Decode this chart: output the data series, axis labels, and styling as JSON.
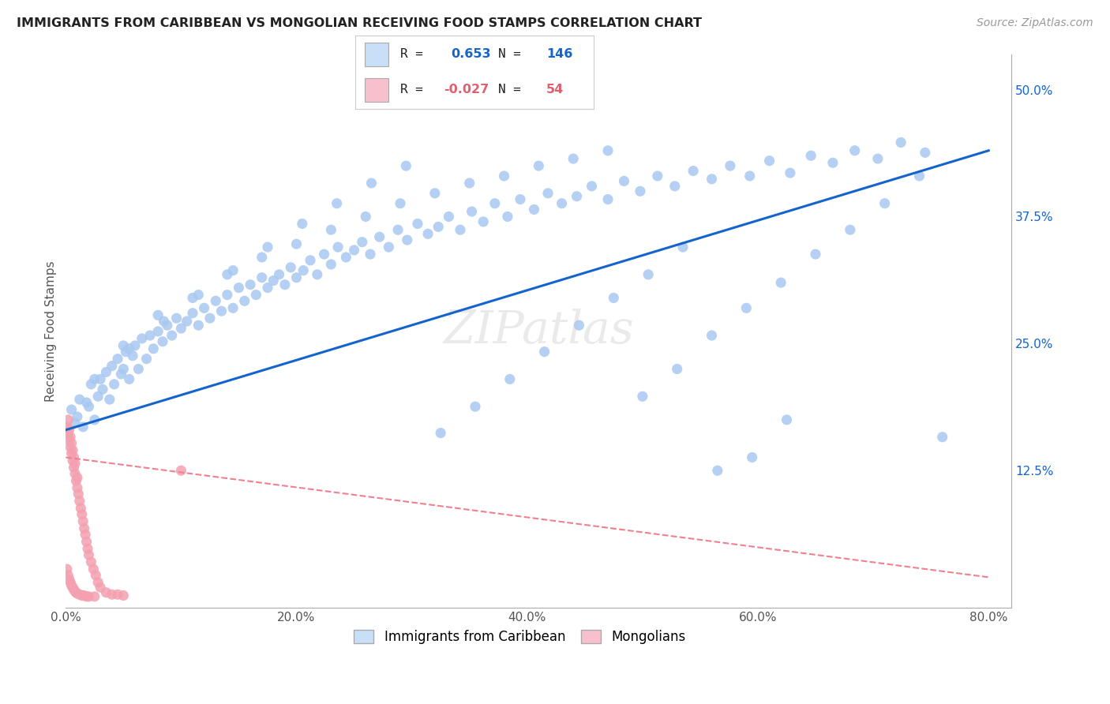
{
  "title": "IMMIGRANTS FROM CARIBBEAN VS MONGOLIAN RECEIVING FOOD STAMPS CORRELATION CHART",
  "source": "Source: ZipAtlas.com",
  "ylabel": "Receiving Food Stamps",
  "xlim": [
    0.0,
    0.82
  ],
  "ylim": [
    -0.01,
    0.535
  ],
  "xticks": [
    0.0,
    0.1,
    0.2,
    0.3,
    0.4,
    0.5,
    0.6,
    0.7,
    0.8
  ],
  "xticklabels": [
    "0.0%",
    "",
    "20.0%",
    "",
    "40.0%",
    "",
    "60.0%",
    "",
    "80.0%"
  ],
  "yticks_right": [
    0.125,
    0.25,
    0.375,
    0.5
  ],
  "ytick_right_labels": [
    "12.5%",
    "25.0%",
    "37.5%",
    "50.0%"
  ],
  "scatter_blue_color": "#a8c8f0",
  "scatter_pink_color": "#f4a0b0",
  "line_blue_color": "#1464cc",
  "line_pink_color": "#f08090",
  "legend_blue_face": "#c8dff8",
  "legend_pink_face": "#f8c0cc",
  "background_color": "#ffffff",
  "grid_color": "#dddddd",
  "watermark_text": "ZIPatlas",
  "blue_line_x0": 0.0,
  "blue_line_y0": 0.165,
  "blue_line_x1": 0.8,
  "blue_line_y1": 0.44,
  "pink_line_x0": 0.0,
  "pink_line_y0": 0.138,
  "pink_line_x1": 0.8,
  "pink_line_y1": 0.02,
  "blue_x": [
    0.005,
    0.008,
    0.01,
    0.012,
    0.015,
    0.018,
    0.02,
    0.022,
    0.025,
    0.028,
    0.03,
    0.032,
    0.035,
    0.038,
    0.04,
    0.042,
    0.045,
    0.048,
    0.05,
    0.052,
    0.055,
    0.058,
    0.06,
    0.063,
    0.066,
    0.07,
    0.073,
    0.076,
    0.08,
    0.084,
    0.088,
    0.092,
    0.096,
    0.1,
    0.105,
    0.11,
    0.115,
    0.12,
    0.125,
    0.13,
    0.135,
    0.14,
    0.145,
    0.15,
    0.155,
    0.16,
    0.165,
    0.17,
    0.175,
    0.18,
    0.185,
    0.19,
    0.195,
    0.2,
    0.206,
    0.212,
    0.218,
    0.224,
    0.23,
    0.236,
    0.243,
    0.25,
    0.257,
    0.264,
    0.272,
    0.28,
    0.288,
    0.296,
    0.305,
    0.314,
    0.323,
    0.332,
    0.342,
    0.352,
    0.362,
    0.372,
    0.383,
    0.394,
    0.406,
    0.418,
    0.43,
    0.443,
    0.456,
    0.47,
    0.484,
    0.498,
    0.513,
    0.528,
    0.544,
    0.56,
    0.576,
    0.593,
    0.61,
    0.628,
    0.646,
    0.665,
    0.684,
    0.704,
    0.724,
    0.745,
    0.05,
    0.08,
    0.11,
    0.14,
    0.17,
    0.2,
    0.23,
    0.26,
    0.29,
    0.32,
    0.35,
    0.38,
    0.41,
    0.44,
    0.47,
    0.5,
    0.53,
    0.56,
    0.59,
    0.62,
    0.65,
    0.68,
    0.71,
    0.74,
    0.76,
    0.025,
    0.055,
    0.085,
    0.115,
    0.145,
    0.175,
    0.205,
    0.235,
    0.265,
    0.295,
    0.325,
    0.355,
    0.385,
    0.415,
    0.445,
    0.475,
    0.505,
    0.535,
    0.565,
    0.595,
    0.625
  ],
  "blue_y": [
    0.185,
    0.172,
    0.178,
    0.195,
    0.168,
    0.192,
    0.188,
    0.21,
    0.175,
    0.198,
    0.215,
    0.205,
    0.222,
    0.195,
    0.228,
    0.21,
    0.235,
    0.22,
    0.225,
    0.242,
    0.215,
    0.238,
    0.248,
    0.225,
    0.255,
    0.235,
    0.258,
    0.245,
    0.262,
    0.252,
    0.268,
    0.258,
    0.275,
    0.265,
    0.272,
    0.28,
    0.268,
    0.285,
    0.275,
    0.292,
    0.282,
    0.298,
    0.285,
    0.305,
    0.292,
    0.308,
    0.298,
    0.315,
    0.305,
    0.312,
    0.318,
    0.308,
    0.325,
    0.315,
    0.322,
    0.332,
    0.318,
    0.338,
    0.328,
    0.345,
    0.335,
    0.342,
    0.35,
    0.338,
    0.355,
    0.345,
    0.362,
    0.352,
    0.368,
    0.358,
    0.365,
    0.375,
    0.362,
    0.38,
    0.37,
    0.388,
    0.375,
    0.392,
    0.382,
    0.398,
    0.388,
    0.395,
    0.405,
    0.392,
    0.41,
    0.4,
    0.415,
    0.405,
    0.42,
    0.412,
    0.425,
    0.415,
    0.43,
    0.418,
    0.435,
    0.428,
    0.44,
    0.432,
    0.448,
    0.438,
    0.248,
    0.278,
    0.295,
    0.318,
    0.335,
    0.348,
    0.362,
    0.375,
    0.388,
    0.398,
    0.408,
    0.415,
    0.425,
    0.432,
    0.44,
    0.198,
    0.225,
    0.258,
    0.285,
    0.31,
    0.338,
    0.362,
    0.388,
    0.415,
    0.158,
    0.215,
    0.245,
    0.272,
    0.298,
    0.322,
    0.345,
    0.368,
    0.388,
    0.408,
    0.425,
    0.162,
    0.188,
    0.215,
    0.242,
    0.268,
    0.295,
    0.318,
    0.345,
    0.125,
    0.138,
    0.175
  ],
  "pink_x": [
    0.001,
    0.002,
    0.002,
    0.003,
    0.003,
    0.004,
    0.004,
    0.005,
    0.005,
    0.006,
    0.006,
    0.007,
    0.007,
    0.008,
    0.008,
    0.009,
    0.01,
    0.01,
    0.011,
    0.012,
    0.013,
    0.014,
    0.015,
    0.016,
    0.017,
    0.018,
    0.019,
    0.02,
    0.022,
    0.024,
    0.026,
    0.028,
    0.03,
    0.035,
    0.04,
    0.045,
    0.05,
    0.001,
    0.002,
    0.003,
    0.004,
    0.005,
    0.006,
    0.007,
    0.008,
    0.009,
    0.01,
    0.012,
    0.014,
    0.016,
    0.018,
    0.02,
    0.025,
    0.1
  ],
  "pink_y": [
    0.168,
    0.162,
    0.175,
    0.155,
    0.165,
    0.148,
    0.158,
    0.142,
    0.152,
    0.135,
    0.145,
    0.128,
    0.138,
    0.122,
    0.132,
    0.115,
    0.108,
    0.118,
    0.102,
    0.095,
    0.088,
    0.082,
    0.075,
    0.068,
    0.062,
    0.055,
    0.048,
    0.042,
    0.035,
    0.028,
    0.022,
    0.015,
    0.01,
    0.005,
    0.003,
    0.003,
    0.002,
    0.028,
    0.022,
    0.018,
    0.015,
    0.012,
    0.01,
    0.008,
    0.006,
    0.005,
    0.004,
    0.003,
    0.002,
    0.002,
    0.001,
    0.001,
    0.001,
    0.125
  ]
}
